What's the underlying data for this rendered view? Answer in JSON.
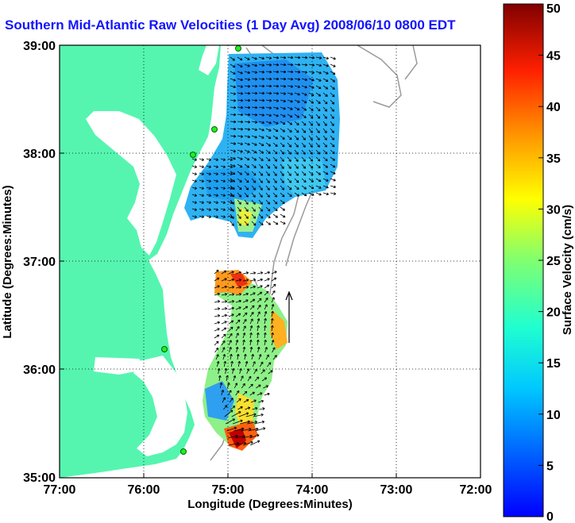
{
  "title": "Southern Mid-Atlantic Raw Velocities (1 Day Avg) 2008/06/10 0800 EDT",
  "map": {
    "xlabel": "Longitude (Degrees:Minutes)",
    "ylabel": "Latitude (Degrees:Minutes)",
    "x_ticks": [
      "77:00",
      "76:00",
      "75:00",
      "74:00",
      "73:00",
      "72:00"
    ],
    "y_ticks": [
      "39:00",
      "38:00",
      "37:00",
      "36:00",
      "35:00"
    ],
    "land_color": "#55f5b0",
    "grid": "dotted"
  },
  "colorbar": {
    "label": "Surface Velocity (cm/s)",
    "ticks": [
      "50",
      "45",
      "40",
      "35",
      "30",
      "25",
      "20",
      "15",
      "10",
      "5",
      "0"
    ],
    "range": [
      0,
      50
    ],
    "colormap": "jet"
  },
  "stations": [
    "station-marker",
    "station-marker",
    "station-marker",
    "station-marker",
    "station-marker"
  ]
}
